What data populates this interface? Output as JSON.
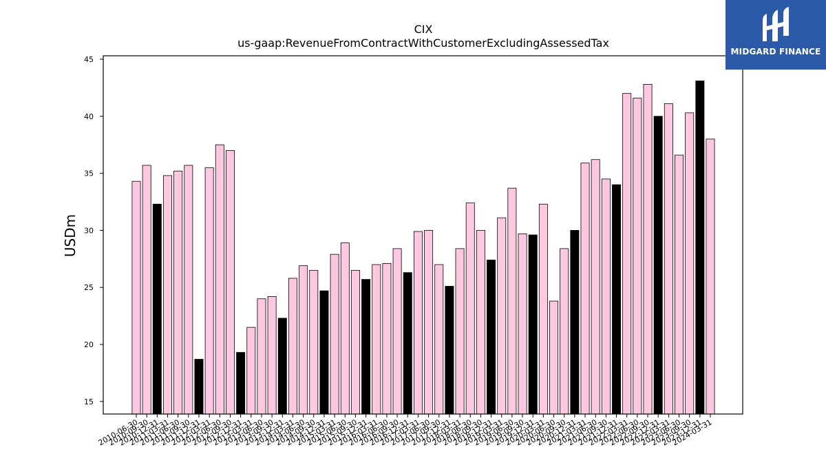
{
  "logo": {
    "text": "MIDGARD FINANCE"
  },
  "chart_data": {
    "type": "bar",
    "title": "CIX",
    "subtitle": "us-gaap:RevenueFromContractWithCustomerExcludingAssessedTax",
    "xlabel": "",
    "ylabel": "USDm",
    "ylim": [
      13.9,
      45.3
    ],
    "yticks": [
      15,
      20,
      25,
      30,
      35,
      40,
      45
    ],
    "grid": false,
    "colors": {
      "quarter": "#ffc8e0",
      "fiscal_year_end": "#000000",
      "edge": "#000000"
    },
    "categories": [
      "2010-06-30",
      "2010-09-30",
      "2010-12-31",
      "2011-03-31",
      "2011-06-30",
      "2011-09-30",
      "2011-12-31",
      "2012-03-31",
      "2012-06-30",
      "2012-09-30",
      "2012-12-31",
      "2013-03-31",
      "2013-06-30",
      "2013-09-30",
      "2013-12-31",
      "2014-03-31",
      "2014-06-30",
      "2014-09-30",
      "2014-12-31",
      "2015-03-31",
      "2015-06-30",
      "2015-09-30",
      "2015-12-31",
      "2016-03-31",
      "2016-06-30",
      "2016-09-30",
      "2016-12-31",
      "2017-03-31",
      "2017-06-30",
      "2017-09-30",
      "2017-12-31",
      "2018-03-31",
      "2018-06-30",
      "2018-09-30",
      "2018-12-31",
      "2019-03-31",
      "2019-06-30",
      "2019-09-30",
      "2019-12-31",
      "2020-03-31",
      "2020-06-30",
      "2020-09-30",
      "2020-12-31",
      "2021-03-31",
      "2021-06-30",
      "2021-09-30",
      "2021-12-31",
      "2022-03-31",
      "2022-06-30",
      "2022-09-30",
      "2022-12-31",
      "2023-03-31",
      "2023-06-30",
      "2023-09-30",
      "2023-12-31",
      "2024-03-31"
    ],
    "values": [
      34.3,
      35.7,
      32.3,
      34.8,
      35.2,
      35.7,
      18.7,
      35.5,
      37.5,
      37.0,
      19.3,
      21.5,
      24.0,
      24.2,
      22.3,
      25.8,
      26.9,
      26.5,
      24.7,
      27.9,
      28.9,
      26.5,
      25.7,
      27.0,
      27.1,
      28.4,
      26.3,
      29.9,
      30.0,
      27.0,
      25.1,
      28.4,
      32.4,
      30.0,
      27.4,
      31.1,
      33.7,
      29.7,
      29.6,
      32.3,
      23.8,
      28.4,
      30.0,
      35.9,
      36.2,
      34.5,
      34.0,
      42.0,
      41.6,
      42.8,
      40.0,
      41.1,
      36.6,
      40.3,
      43.1,
      38.0
    ],
    "highlight": [
      false,
      false,
      true,
      false,
      false,
      false,
      true,
      false,
      false,
      false,
      true,
      false,
      false,
      false,
      true,
      false,
      false,
      false,
      true,
      false,
      false,
      false,
      true,
      false,
      false,
      false,
      true,
      false,
      false,
      false,
      true,
      false,
      false,
      false,
      true,
      false,
      false,
      false,
      true,
      false,
      false,
      false,
      true,
      false,
      false,
      false,
      true,
      false,
      false,
      false,
      true,
      false,
      false,
      false,
      true,
      false
    ]
  }
}
